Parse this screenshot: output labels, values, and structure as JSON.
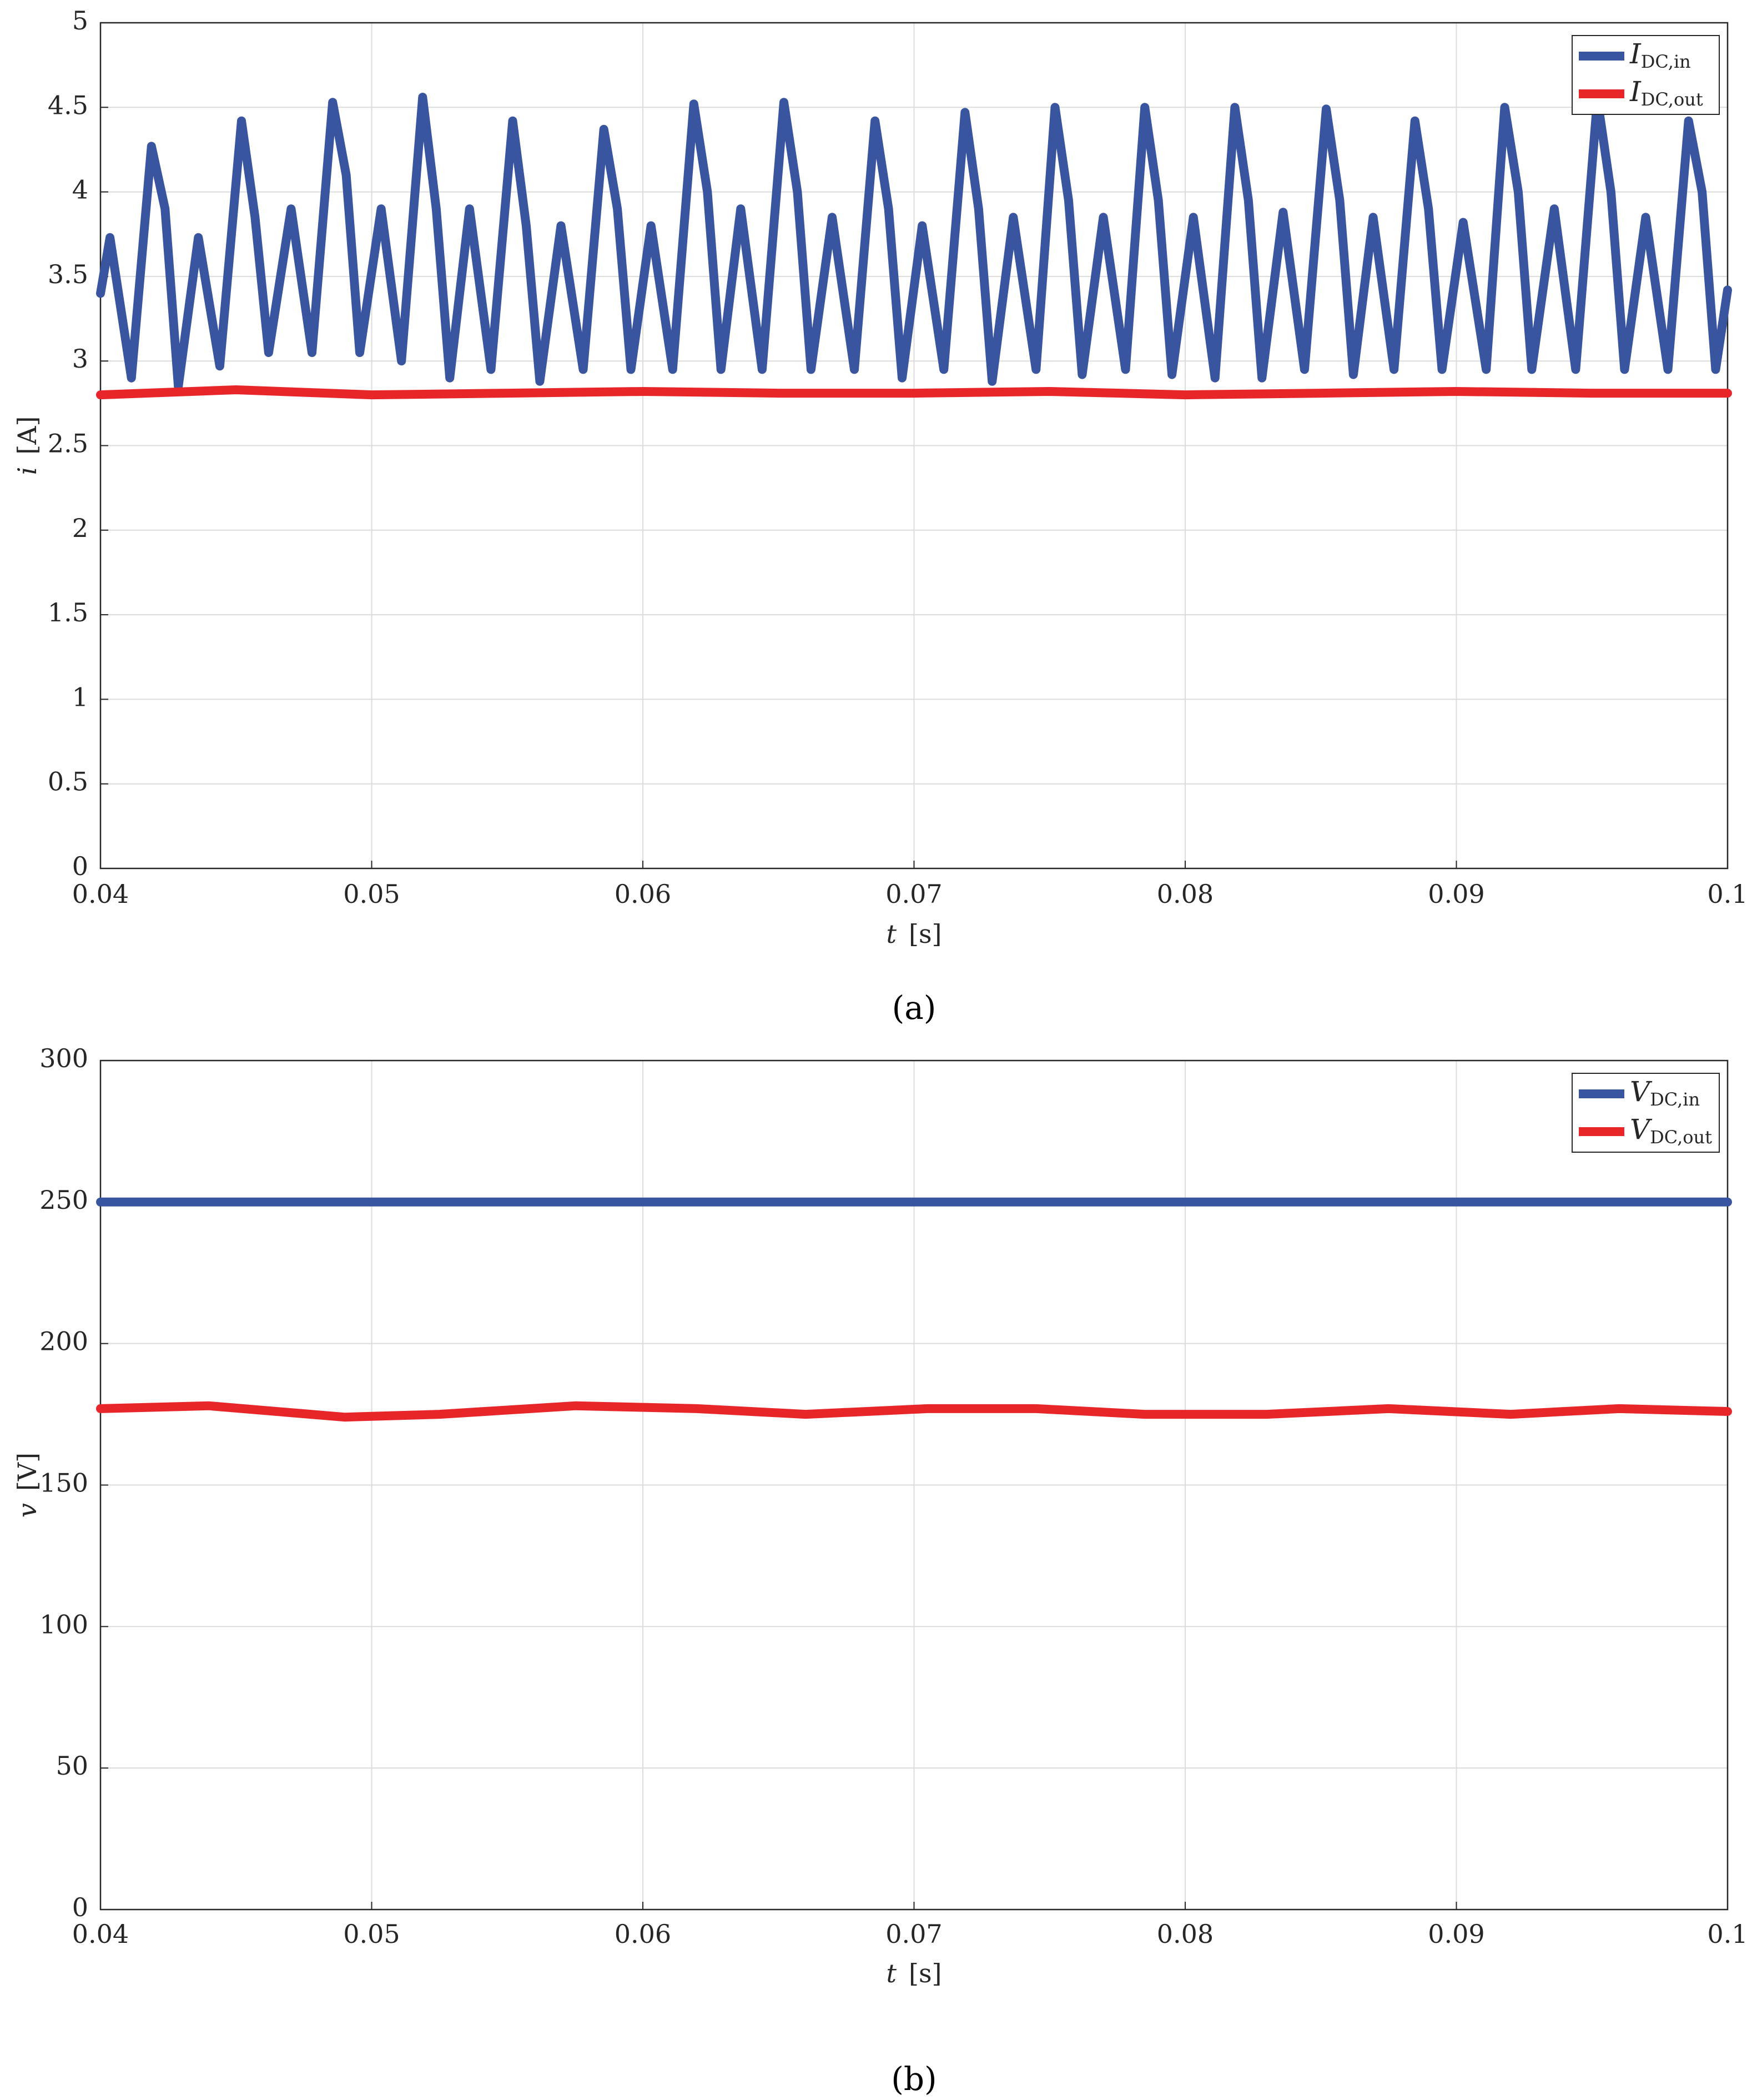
{
  "chart_data": [
    {
      "type": "line",
      "caption": "(a)",
      "xlabel": {
        "var": "t",
        "unit": "[s]"
      },
      "ylabel": {
        "var": "i",
        "unit": "[A]"
      },
      "xlim": [
        0.04,
        0.1
      ],
      "xticks": [
        0.04,
        0.05,
        0.06,
        0.07,
        0.08,
        0.09,
        0.1
      ],
      "ylim": [
        0,
        5
      ],
      "yticks": [
        0,
        0.5,
        1,
        1.5,
        2,
        2.5,
        3,
        3.5,
        4,
        4.5,
        5
      ],
      "grid": true,
      "legend": "top-right",
      "series": [
        {
          "name": {
            "main": "I",
            "sub": "DC,in"
          },
          "color": "#3a55a0",
          "x": [
            0.04,
            0.04035,
            0.04114,
            0.04188,
            0.04238,
            0.04287,
            0.04361,
            0.0444,
            0.0452,
            0.0457,
            0.0462,
            0.04703,
            0.0478,
            0.04856,
            0.04906,
            0.04956,
            0.05035,
            0.0511,
            0.05188,
            0.05238,
            0.05288,
            0.05361,
            0.0544,
            0.0552,
            0.0557,
            0.0562,
            0.05698,
            0.0578,
            0.05856,
            0.05906,
            0.05956,
            0.0603,
            0.0611,
            0.06188,
            0.06238,
            0.06288,
            0.06361,
            0.0644,
            0.0652,
            0.0657,
            0.0662,
            0.06698,
            0.0678,
            0.06856,
            0.06906,
            0.06956,
            0.0703,
            0.0711,
            0.07188,
            0.07238,
            0.07288,
            0.07366,
            0.0745,
            0.0752,
            0.0757,
            0.0762,
            0.07698,
            0.0778,
            0.07851,
            0.07901,
            0.07951,
            0.0803,
            0.0811,
            0.08183,
            0.08233,
            0.08283,
            0.08361,
            0.0844,
            0.0852,
            0.0857,
            0.0862,
            0.08693,
            0.0877,
            0.08847,
            0.08897,
            0.08947,
            0.09025,
            0.0911,
            0.09178,
            0.09228,
            0.09278,
            0.09361,
            0.0944,
            0.0952,
            0.0957,
            0.0962,
            0.09698,
            0.0978,
            0.09856,
            0.09906,
            0.09956,
            0.1
          ],
          "values": [
            3.4,
            3.73,
            2.9,
            4.27,
            3.9,
            2.85,
            3.73,
            2.97,
            4.42,
            3.85,
            3.05,
            3.9,
            3.05,
            4.53,
            4.1,
            3.05,
            3.9,
            3.0,
            4.56,
            3.9,
            2.9,
            3.9,
            2.95,
            4.42,
            3.8,
            2.88,
            3.8,
            2.95,
            4.37,
            3.9,
            2.95,
            3.8,
            2.95,
            4.52,
            4.0,
            2.95,
            3.9,
            2.95,
            4.53,
            4.0,
            2.95,
            3.85,
            2.95,
            4.42,
            3.9,
            2.9,
            3.8,
            2.95,
            4.47,
            3.9,
            2.88,
            3.85,
            2.95,
            4.5,
            3.95,
            2.92,
            3.85,
            2.95,
            4.5,
            3.95,
            2.92,
            3.85,
            2.9,
            4.5,
            3.95,
            2.9,
            3.88,
            2.95,
            4.49,
            3.95,
            2.92,
            3.85,
            2.95,
            4.42,
            3.9,
            2.95,
            3.82,
            2.95,
            4.5,
            4.0,
            2.95,
            3.9,
            2.95,
            4.55,
            4.0,
            2.95,
            3.85,
            2.95,
            4.42,
            4.0,
            2.95,
            3.42
          ]
        },
        {
          "name": {
            "main": "I",
            "sub": "DC,out"
          },
          "color": "#e8262a",
          "x": [
            0.04,
            0.045,
            0.05,
            0.055,
            0.06,
            0.065,
            0.07,
            0.075,
            0.08,
            0.085,
            0.09,
            0.095,
            0.1
          ],
          "values": [
            2.8,
            2.83,
            2.8,
            2.81,
            2.82,
            2.81,
            2.81,
            2.82,
            2.8,
            2.81,
            2.82,
            2.81,
            2.81
          ]
        }
      ]
    },
    {
      "type": "line",
      "caption": "(b)",
      "xlabel": {
        "var": "t",
        "unit": "[s]"
      },
      "ylabel": {
        "var": "v",
        "unit": "[V]"
      },
      "xlim": [
        0.04,
        0.1
      ],
      "xticks": [
        0.04,
        0.05,
        0.06,
        0.07,
        0.08,
        0.09,
        0.1
      ],
      "ylim": [
        0,
        300
      ],
      "yticks": [
        0,
        50,
        100,
        150,
        200,
        250,
        300
      ],
      "grid": true,
      "legend": "top-right",
      "series": [
        {
          "name": {
            "main": "V",
            "sub": "DC,in"
          },
          "color": "#3a55a0",
          "x": [
            0.04,
            0.1
          ],
          "values": [
            250,
            250
          ]
        },
        {
          "name": {
            "main": "V",
            "sub": "DC,out"
          },
          "color": "#e8262a",
          "x": [
            0.04,
            0.044,
            0.049,
            0.0525,
            0.0575,
            0.062,
            0.066,
            0.0705,
            0.0745,
            0.0785,
            0.083,
            0.0875,
            0.092,
            0.096,
            0.1
          ],
          "values": [
            177,
            178,
            174,
            175,
            178,
            177,
            175,
            177,
            177,
            175,
            175,
            177,
            175,
            177,
            176
          ]
        }
      ]
    }
  ]
}
